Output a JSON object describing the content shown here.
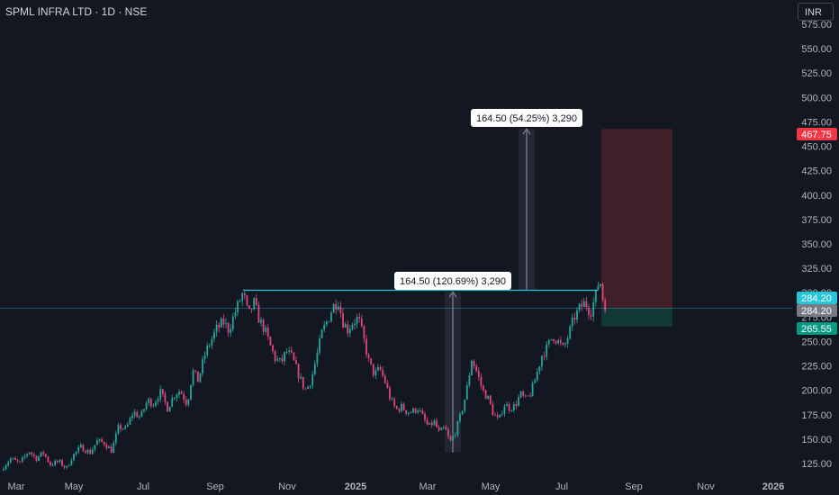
{
  "header": {
    "title": "SPML INFRA LTD · 1D · NSE",
    "currency": "INR"
  },
  "colors": {
    "background": "#131722",
    "up": "#26a69a",
    "down": "#e0457b",
    "grid": "#1e222d",
    "axis_text": "#b2b5be",
    "target_zone": "#4a2129",
    "stop_zone": "#123c3a",
    "resistance_line": "#26c6da",
    "label_current": "#26c6da",
    "label_gray": "#787b86",
    "label_target": "#f23645",
    "label_stop": "#089981",
    "measure_fill": "#2a2e39"
  },
  "chart_data": {
    "type": "candlestick",
    "title": "SPML INFRA LTD · 1D · NSE",
    "xlabel": "",
    "ylabel": "",
    "x_ticks": [
      "Mar",
      "May",
      "Jul",
      "Sep",
      "Nov",
      "2025",
      "Mar",
      "May",
      "Jul",
      "Sep",
      "Nov",
      "2026"
    ],
    "y_ticks": [
      "125.00",
      "150.00",
      "175.00",
      "200.00",
      "225.00",
      "250.00",
      "275.00",
      "300.00",
      "325.00",
      "350.00",
      "375.00",
      "400.00",
      "425.00",
      "450.00",
      "475.00",
      "500.00",
      "525.00",
      "550.00",
      "575.00"
    ],
    "ylim": [
      112,
      590
    ],
    "grid": false,
    "price_levels": [
      {
        "label": "467.75",
        "value": 467.75,
        "kind": "target"
      },
      {
        "label": "284.20",
        "value": 284.2,
        "kind": "current"
      },
      {
        "label": "284.20",
        "value": 284.2,
        "kind": "gray"
      },
      {
        "label": "265.55",
        "value": 265.55,
        "kind": "stop"
      }
    ],
    "resistance": {
      "value": 302.5,
      "from": "Sep",
      "to": "late Jul"
    },
    "position": {
      "entry": 284.2,
      "target": 467.75,
      "stop": 265.55
    },
    "measurements": [
      {
        "label": "164.50 (120.69%) 3,290",
        "from": 136.3,
        "to": 300.8
      },
      {
        "label": "164.50 (54.25%) 3,290",
        "from": 303.3,
        "to": 467.8
      }
    ],
    "path": [
      [
        0,
        118
      ],
      [
        12,
        130
      ],
      [
        22,
        125
      ],
      [
        32,
        138
      ],
      [
        40,
        130
      ],
      [
        48,
        136
      ],
      [
        56,
        124
      ],
      [
        65,
        127
      ],
      [
        74,
        120
      ],
      [
        80,
        132
      ],
      [
        90,
        142
      ],
      [
        100,
        136
      ],
      [
        108,
        148
      ],
      [
        116,
        146
      ],
      [
        124,
        138
      ],
      [
        132,
        163
      ],
      [
        140,
        160
      ],
      [
        148,
        178
      ],
      [
        156,
        172
      ],
      [
        164,
        190
      ],
      [
        170,
        186
      ],
      [
        178,
        198
      ],
      [
        186,
        182
      ],
      [
        194,
        196
      ],
      [
        200,
        200
      ],
      [
        208,
        186
      ],
      [
        214,
        220
      ],
      [
        220,
        210
      ],
      [
        228,
        238
      ],
      [
        234,
        250
      ],
      [
        240,
        262
      ],
      [
        248,
        270
      ],
      [
        254,
        262
      ],
      [
        262,
        282
      ],
      [
        270,
        300
      ],
      [
        276,
        276
      ],
      [
        282,
        290
      ],
      [
        288,
        272
      ],
      [
        294,
        262
      ],
      [
        300,
        246
      ],
      [
        306,
        232
      ],
      [
        312,
        228
      ],
      [
        318,
        240
      ],
      [
        324,
        234
      ],
      [
        330,
        220
      ],
      [
        336,
        206
      ],
      [
        340,
        200
      ],
      [
        346,
        212
      ],
      [
        352,
        236
      ],
      [
        358,
        260
      ],
      [
        364,
        272
      ],
      [
        370,
        286
      ],
      [
        376,
        292
      ],
      [
        380,
        272
      ],
      [
        386,
        262
      ],
      [
        392,
        270
      ],
      [
        398,
        274
      ],
      [
        404,
        252
      ],
      [
        410,
        228
      ],
      [
        416,
        216
      ],
      [
        422,
        222
      ],
      [
        428,
        208
      ],
      [
        434,
        190
      ],
      [
        440,
        180
      ],
      [
        446,
        183
      ],
      [
        452,
        178
      ],
      [
        458,
        178
      ],
      [
        464,
        182
      ],
      [
        470,
        172
      ],
      [
        476,
        162
      ],
      [
        482,
        168
      ],
      [
        488,
        156
      ],
      [
        494,
        162
      ],
      [
        500,
        146
      ],
      [
        506,
        158
      ],
      [
        512,
        175
      ],
      [
        518,
        198
      ],
      [
        524,
        232
      ],
      [
        530,
        218
      ],
      [
        536,
        200
      ],
      [
        542,
        192
      ],
      [
        548,
        176
      ],
      [
        554,
        168
      ],
      [
        560,
        186
      ],
      [
        566,
        182
      ],
      [
        572,
        184
      ],
      [
        578,
        196
      ],
      [
        584,
        190
      ],
      [
        590,
        198
      ],
      [
        596,
        216
      ],
      [
        602,
        236
      ],
      [
        608,
        244
      ],
      [
        614,
        256
      ],
      [
        620,
        250
      ],
      [
        626,
        242
      ],
      [
        632,
        258
      ],
      [
        638,
        275
      ],
      [
        644,
        284
      ],
      [
        650,
        290
      ],
      [
        656,
        280
      ],
      [
        662,
        298
      ],
      [
        666,
        316
      ],
      [
        670,
        292
      ],
      [
        674,
        284.2
      ]
    ]
  }
}
